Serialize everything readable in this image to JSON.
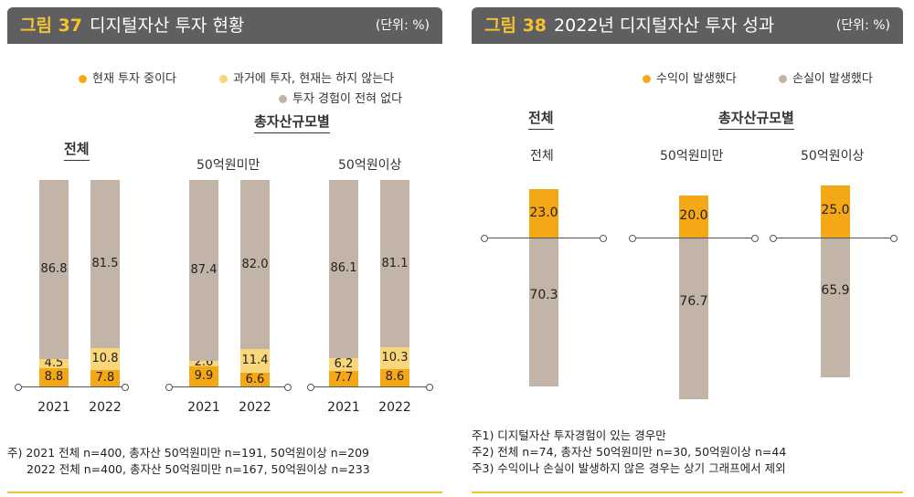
{
  "colors": {
    "current": "#f5a816",
    "past": "#f9d67a",
    "never": "#c2b5a8",
    "profit": "#f5a816",
    "loss": "#c2b5a8"
  },
  "fig37": {
    "num": "그림 37",
    "title": "디지털자산 투자 현황",
    "unit": "(단위: %)",
    "legend": [
      "현재 투자 중이다",
      "과거에 투자, 현재는 하지 않는다",
      "투자 경험이 전혀 없다"
    ],
    "sec_total": "전체",
    "sec_size": "총자산규모별",
    "groups": [
      "50억원미만",
      "50억원이상"
    ],
    "notes": [
      "주) 2021 전체 n=400, 총자산 50억원미만 n=191, 50억원이상 n=209",
      "2022 전체 n=400, 총자산 50억원미만 n=167, 50억원이상 n=233"
    ]
  },
  "fig38": {
    "num": "그림 38",
    "title": "2022년 디지털자산 투자 성과",
    "unit": "(단위: %)",
    "legend": [
      "수익이 발생했다",
      "손실이 발생했다"
    ],
    "sec_total": "전체",
    "sec_size": "총자산규모별",
    "groups": [
      "전체",
      "50억원미만",
      "50억원이상"
    ],
    "notes": [
      "주1) 디지털자산 투자경험이 있는 경우만",
      "주2) 전체 n=74, 총자산 50억원미만 n=30, 50억원이상 n=44",
      "주3) 수익이나 손실이 발생하지 않은 경우는 상기 그래프에서 제외"
    ]
  },
  "chart_data": [
    {
      "type": "bar",
      "stacked": true,
      "title": "디지털자산 투자 현황",
      "categories": [
        "전체 2021",
        "전체 2022",
        "50억원미만 2021",
        "50억원미만 2022",
        "50억원이상 2021",
        "50억원이상 2022"
      ],
      "x_labels": [
        "2021",
        "2022",
        "2021",
        "2022",
        "2021",
        "2022"
      ],
      "series": [
        {
          "name": "현재 투자 중이다",
          "values": [
            8.8,
            7.8,
            9.9,
            6.6,
            7.7,
            8.6
          ]
        },
        {
          "name": "과거에 투자, 현재는 하지 않는다",
          "values": [
            4.5,
            10.8,
            2.6,
            11.4,
            6.2,
            10.3
          ]
        },
        {
          "name": "투자 경험이 전혀 없다",
          "values": [
            86.8,
            81.5,
            87.4,
            82.0,
            86.1,
            81.1
          ]
        }
      ],
      "labels": {
        "current": [
          "8.8",
          "7.8",
          "9.9",
          "6.6",
          "7.7",
          "8.6"
        ],
        "past": [
          "4.5",
          "10.8",
          "2.6",
          "11.4",
          "6.2",
          "10.3"
        ],
        "never": [
          "86.8",
          "81.5",
          "87.4",
          "82.0",
          "86.1",
          "81.1"
        ]
      }
    },
    {
      "type": "bar",
      "diverging": true,
      "title": "2022년 디지털자산 투자 성과",
      "categories": [
        "전체",
        "50억원미만",
        "50억원이상"
      ],
      "series": [
        {
          "name": "수익이 발생했다",
          "values": [
            23.0,
            20.0,
            25.0
          ]
        },
        {
          "name": "손실이 발생했다",
          "values": [
            70.3,
            76.7,
            65.9
          ]
        }
      ],
      "labels": {
        "profit": [
          "23.0",
          "20.0",
          "25.0"
        ],
        "loss": [
          "70.3",
          "76.7",
          "65.9"
        ]
      }
    }
  ]
}
